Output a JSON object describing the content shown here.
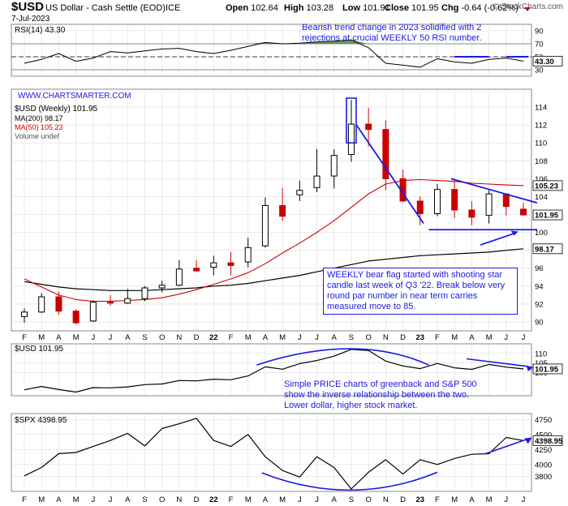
{
  "header": {
    "symbol": "$USD",
    "name": "US Dollar - Cash Settle (EOD)",
    "exchange": "ICE",
    "date": "7-Jul-2023",
    "credit": "© StockCharts.com",
    "ohlc": [
      {
        "label": "Open",
        "value": "102.64"
      },
      {
        "label": "High",
        "value": "103.28"
      },
      {
        "label": "Low",
        "value": "101.91"
      },
      {
        "label": "Close",
        "value": "101.95"
      },
      {
        "label": "Chg",
        "value": "-0.64 (-0.62%)"
      }
    ]
  },
  "colors": {
    "up": "#000000",
    "down": "#cc0000",
    "ma200": "#000000",
    "ma50": "#cc0000",
    "annotation": "#1a1ae6",
    "rsi_fill": "#4a8a3a",
    "grid": "#dddddd"
  },
  "watermark": "WWW.CHARTSMARTER.COM",
  "annotations": {
    "rsi_note": "Bearish trend change in 2023 solidified with 2 rejections at crucial WEEKLY 50 RSI number.",
    "flag_note": "WEEKLY bear flag started with shooting star candle last week of Q3 '22. Break below very round par number in near term carries measured move to 85.",
    "relation_note": "Simple PRICE charts of greenback and S&P 500 show the inverse relationship between the two. Lower dollar, higher stock market."
  },
  "months": [
    "F",
    "M",
    "A",
    "M",
    "J",
    "J",
    "A",
    "S",
    "O",
    "N",
    "D",
    "22",
    "F",
    "M",
    "A",
    "M",
    "J",
    "J",
    "A",
    "S",
    "O",
    "N",
    "D",
    "23",
    "F",
    "M",
    "A",
    "M",
    "J",
    "J"
  ],
  "chart_data": [
    {
      "type": "line",
      "panel": "rsi",
      "title": "RSI(14) 43.30",
      "yticks": [
        30,
        50,
        70,
        90
      ],
      "ylim": [
        20,
        100
      ],
      "reference_lines": [
        70,
        50,
        30
      ],
      "last_value_label": "43.30",
      "last_value": 43.3,
      "x": [
        "2021-02",
        "2021-03",
        "2021-04",
        "2021-05",
        "2021-06",
        "2021-07",
        "2021-08",
        "2021-09",
        "2021-10",
        "2021-11",
        "2021-12",
        "2022-01",
        "2022-02",
        "2022-03",
        "2022-04",
        "2022-05",
        "2022-06",
        "2022-07",
        "2022-08",
        "2022-09",
        "2022-10",
        "2022-11",
        "2022-12",
        "2023-01",
        "2023-02",
        "2023-03",
        "2023-04",
        "2023-05",
        "2023-06",
        "2023-07"
      ],
      "values": [
        40,
        46,
        55,
        43,
        48,
        58,
        56,
        59,
        62,
        63,
        58,
        55,
        60,
        66,
        72,
        70,
        71,
        73,
        74,
        76,
        64,
        40,
        37,
        34,
        47,
        42,
        40,
        46,
        48,
        43.3
      ]
    },
    {
      "type": "candlestick",
      "panel": "price",
      "title": "$USD (Weekly) 101.95",
      "legend": [
        "MA(200) 98.17",
        "MA(50) 105.23",
        "Volume undef"
      ],
      "yticks": [
        90,
        92,
        94,
        96,
        98,
        100,
        102,
        104,
        106,
        108,
        110,
        112,
        114
      ],
      "ylim": [
        89,
        116
      ],
      "value_labels": [
        {
          "text": "105.23",
          "value": 105.23
        },
        {
          "text": "101.95",
          "value": 101.95
        },
        {
          "text": "98.17",
          "value": 98.17
        }
      ],
      "x": [
        "2021-02",
        "2021-03",
        "2021-04",
        "2021-05",
        "2021-06",
        "2021-07",
        "2021-08",
        "2021-09",
        "2021-10",
        "2021-11",
        "2021-12",
        "2022-01",
        "2022-02",
        "2022-03",
        "2022-04",
        "2022-05",
        "2022-06",
        "2022-07",
        "2022-08",
        "2022-09",
        "2022-10",
        "2022-11",
        "2022-12",
        "2023-01",
        "2023-02",
        "2023-03",
        "2023-04",
        "2023-05",
        "2023-06",
        "2023-07"
      ],
      "ohlc": [
        [
          90.6,
          91.5,
          89.9,
          91.1
        ],
        [
          91.1,
          93.2,
          91.0,
          92.8
        ],
        [
          92.8,
          93.4,
          90.8,
          91.2
        ],
        [
          91.2,
          91.4,
          89.7,
          89.9
        ],
        [
          90.1,
          92.4,
          90.0,
          92.2
        ],
        [
          92.2,
          93.0,
          91.8,
          92.1
        ],
        [
          92.1,
          93.7,
          92.0,
          92.6
        ],
        [
          92.6,
          94.0,
          92.3,
          93.8
        ],
        [
          93.8,
          94.6,
          93.3,
          94.1
        ],
        [
          94.1,
          96.9,
          94.0,
          95.9
        ],
        [
          96.0,
          96.9,
          95.6,
          95.7
        ],
        [
          96.1,
          97.4,
          95.2,
          96.6
        ],
        [
          96.6,
          97.8,
          95.2,
          96.3
        ],
        [
          96.7,
          99.4,
          96.1,
          98.3
        ],
        [
          98.5,
          103.9,
          98.3,
          103.0
        ],
        [
          103.0,
          105.0,
          101.3,
          101.8
        ],
        [
          104.2,
          105.8,
          103.5,
          104.7
        ],
        [
          105.0,
          109.3,
          104.5,
          106.3
        ],
        [
          106.3,
          109.3,
          104.9,
          108.6
        ],
        [
          108.7,
          114.8,
          107.9,
          112.1
        ],
        [
          112.1,
          113.9,
          109.6,
          111.5
        ],
        [
          111.5,
          112.5,
          104.7,
          106.0
        ],
        [
          106.0,
          107.0,
          103.4,
          103.5
        ],
        [
          103.5,
          104.0,
          100.8,
          102.1
        ],
        [
          102.1,
          105.4,
          101.8,
          104.8
        ],
        [
          104.8,
          105.9,
          101.6,
          102.5
        ],
        [
          102.5,
          103.5,
          100.8,
          101.7
        ],
        [
          101.9,
          104.7,
          101.0,
          104.3
        ],
        [
          104.3,
          104.3,
          101.9,
          102.9
        ],
        [
          102.6,
          103.3,
          101.9,
          101.95
        ]
      ],
      "ma200": [
        94.5,
        94.2,
        93.9,
        93.7,
        93.6,
        93.5,
        93.5,
        93.5,
        93.6,
        93.7,
        93.8,
        94.0,
        94.1,
        94.3,
        94.6,
        94.9,
        95.2,
        95.6,
        96.0,
        96.4,
        96.8,
        97.0,
        97.2,
        97.4,
        97.5,
        97.6,
        97.7,
        97.8,
        98.0,
        98.17
      ],
      "ma50": [
        94.8,
        93.9,
        93.0,
        92.5,
        92.3,
        92.3,
        92.4,
        92.5,
        92.7,
        93.1,
        93.6,
        94.2,
        94.8,
        95.5,
        96.5,
        97.7,
        98.8,
        100.0,
        101.3,
        102.8,
        104.3,
        105.4,
        105.8,
        105.9,
        105.8,
        105.7,
        105.5,
        105.4,
        105.3,
        105.23
      ]
    },
    {
      "type": "line",
      "panel": "usd",
      "title": "$USD 101.95",
      "yticks": [
        100,
        105,
        110
      ],
      "ylim": [
        88,
        115
      ],
      "last_value_label": "101.95",
      "last_value": 101.95,
      "x": [
        "2021-02",
        "2021-03",
        "2021-04",
        "2021-05",
        "2021-06",
        "2021-07",
        "2021-08",
        "2021-09",
        "2021-10",
        "2021-11",
        "2021-12",
        "2022-01",
        "2022-02",
        "2022-03",
        "2022-04",
        "2022-05",
        "2022-06",
        "2022-07",
        "2022-08",
        "2022-09",
        "2022-10",
        "2022-11",
        "2022-12",
        "2023-01",
        "2023-02",
        "2023-03",
        "2023-04",
        "2023-05",
        "2023-06",
        "2023-07"
      ],
      "values": [
        91.1,
        92.8,
        91.2,
        89.9,
        92.2,
        92.1,
        92.6,
        93.8,
        94.1,
        95.9,
        95.7,
        96.6,
        96.3,
        98.3,
        103.0,
        101.8,
        104.7,
        106.3,
        108.6,
        112.1,
        111.5,
        106.0,
        103.5,
        102.1,
        104.8,
        102.5,
        101.7,
        104.3,
        102.9,
        101.95
      ]
    },
    {
      "type": "line",
      "panel": "spx",
      "title": "$SPX 4398.95",
      "yticks": [
        3800,
        4000,
        4250,
        4500,
        4750
      ],
      "ylim": [
        3550,
        4850
      ],
      "last_value_label": "4398.95",
      "last_value": 4398.95,
      "x": [
        "2021-02",
        "2021-03",
        "2021-04",
        "2021-05",
        "2021-06",
        "2021-07",
        "2021-08",
        "2021-09",
        "2021-10",
        "2021-11",
        "2021-12",
        "2022-01",
        "2022-02",
        "2022-03",
        "2022-04",
        "2022-05",
        "2022-06",
        "2022-07",
        "2022-08",
        "2022-09",
        "2022-10",
        "2022-11",
        "2022-12",
        "2023-01",
        "2023-02",
        "2023-03",
        "2023-04",
        "2023-05",
        "2023-06",
        "2023-07"
      ],
      "values": [
        3810,
        3950,
        4180,
        4200,
        4300,
        4400,
        4520,
        4310,
        4600,
        4680,
        4770,
        4400,
        4300,
        4500,
        4130,
        3900,
        3790,
        4130,
        3950,
        3590,
        3870,
        4080,
        3840,
        4080,
        4000,
        4100,
        4170,
        4180,
        4450,
        4398.95
      ]
    }
  ]
}
